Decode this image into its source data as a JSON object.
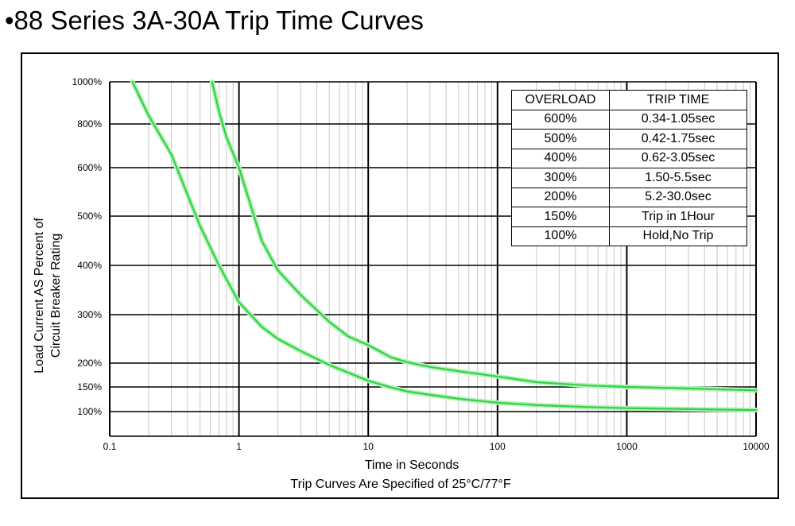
{
  "title": "•88 Series 3A-30A Trip Time Curves",
  "chart_data": {
    "type": "line",
    "title": "88 Series 3A-30A Trip Time Curves",
    "xlabel": "Time in Seconds",
    "ylabel_lines": [
      "Load Current AS Percent of",
      "Circuit Breaker Rating"
    ],
    "note": "Trip Curves Are Specified of 25°C/77°F",
    "x_scale": "log",
    "xlim": [
      0.1,
      10000
    ],
    "ylim": [
      50,
      1000
    ],
    "x_ticks": [
      {
        "value": 0.1,
        "label": "0.1"
      },
      {
        "value": 1,
        "label": "1"
      },
      {
        "value": 10,
        "label": "10"
      },
      {
        "value": 100,
        "label": "100"
      },
      {
        "value": 1000,
        "label": "1000"
      },
      {
        "value": 10000,
        "label": "10000"
      }
    ],
    "y_ticks": [
      {
        "value": 1000,
        "label": "1000%"
      },
      {
        "value": 800,
        "label": "800%"
      },
      {
        "value": 600,
        "label": "600%"
      },
      {
        "value": 500,
        "label": "500%"
      },
      {
        "value": 400,
        "label": "400%"
      },
      {
        "value": 300,
        "label": "300%"
      },
      {
        "value": 200,
        "label": "200%"
      },
      {
        "value": 150,
        "label": "150%"
      },
      {
        "value": 100,
        "label": "100%"
      }
    ],
    "grid": true,
    "line_color": "#2fd43f",
    "series": [
      {
        "points": [
          [
            0.15,
            1000
          ],
          [
            0.2,
            840
          ],
          [
            0.3,
            660
          ],
          [
            0.5,
            480
          ],
          [
            0.7,
            400
          ],
          [
            1,
            325
          ],
          [
            1.5,
            275
          ],
          [
            2,
            250
          ],
          [
            3,
            225
          ],
          [
            5,
            196
          ],
          [
            10,
            163
          ],
          [
            15,
            149
          ],
          [
            20,
            141
          ],
          [
            30,
            134
          ],
          [
            50,
            126
          ],
          [
            100,
            118
          ],
          [
            200,
            113
          ],
          [
            500,
            109
          ],
          [
            1000,
            107
          ],
          [
            3000,
            105
          ],
          [
            10000,
            103
          ]
        ]
      },
      {
        "points": [
          [
            0.62,
            1000
          ],
          [
            0.7,
            860
          ],
          [
            0.8,
            740
          ],
          [
            1,
            600
          ],
          [
            1.5,
            450
          ],
          [
            2,
            390
          ],
          [
            3,
            340
          ],
          [
            5,
            285
          ],
          [
            7,
            255
          ],
          [
            10,
            237
          ],
          [
            15,
            212
          ],
          [
            20,
            202
          ],
          [
            30,
            192
          ],
          [
            50,
            183
          ],
          [
            100,
            172
          ],
          [
            200,
            160
          ],
          [
            500,
            153
          ],
          [
            1000,
            150
          ],
          [
            3000,
            147
          ],
          [
            10000,
            143
          ]
        ]
      }
    ],
    "table": {
      "headers": [
        "OVERLOAD",
        "TRIP TIME"
      ],
      "rows": [
        [
          "600%",
          "0.34-1.05sec"
        ],
        [
          "500%",
          "0.42-1.75sec"
        ],
        [
          "400%",
          "0.62-3.05sec"
        ],
        [
          "300%",
          "1.50-5.5sec"
        ],
        [
          "200%",
          "5.2-30.0sec"
        ],
        [
          "150%",
          "Trip in 1Hour"
        ],
        [
          "100%",
          "Hold,No Trip"
        ]
      ]
    }
  }
}
